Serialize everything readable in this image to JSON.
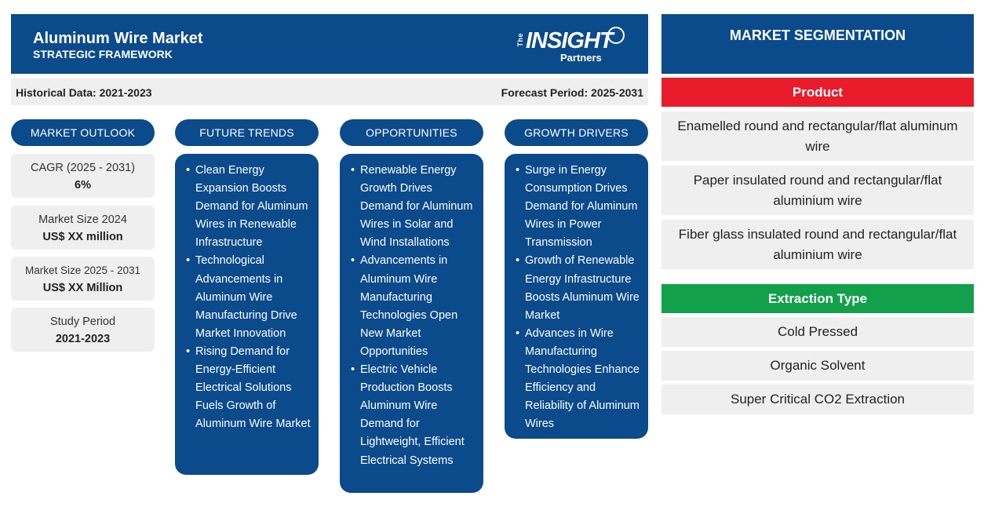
{
  "header": {
    "title": "Aluminum Wire Market",
    "subtitle": "STRATEGIC FRAMEWORK",
    "logo": {
      "the": "The",
      "word": "INSIGHT",
      "partners": "Partners"
    }
  },
  "periods": {
    "historical": "Historical Data: 2021-2023",
    "forecast": "Forecast Period: 2025-2031"
  },
  "columns": {
    "outlook": {
      "title": "MARKET OUTLOOK",
      "cards": [
        {
          "label": "CAGR (2025 - 2031)",
          "value": "6%"
        },
        {
          "label": "Market Size 2024",
          "value": "US$ XX million"
        },
        {
          "label": "Market Size 2025 - 2031",
          "value": "US$ XX Million"
        },
        {
          "label": "Study Period",
          "value": "2021-2023"
        }
      ]
    },
    "trends": {
      "title": "FUTURE TRENDS",
      "items": [
        "Clean Energy Expansion Boosts Demand for Aluminum Wires in Renewable Infrastructure",
        "Technological Advancements in Aluminum Wire Manufacturing Drive Market Innovation",
        "Rising Demand for Energy-Efficient Electrical Solutions Fuels Growth of Aluminum Wire Market"
      ]
    },
    "opportunities": {
      "title": "OPPORTUNITIES",
      "items": [
        "Renewable Energy Growth Drives Demand for Aluminum Wires in Solar and Wind Installations",
        "Advancements in Aluminum Wire Manufacturing Technologies Open New Market Opportunities",
        "Electric Vehicle Production Boosts Aluminum Wire Demand for Lightweight, Efficient Electrical Systems"
      ]
    },
    "drivers": {
      "title": "GROWTH DRIVERS",
      "items": [
        "Surge in Energy Consumption Drives Demand for Aluminum Wires in Power Transmission",
        "Growth of Renewable Energy Infrastructure Boosts Aluminum Wire Market",
        "Advances in Wire Manufacturing Technologies Enhance Efficiency and Reliability of Aluminum Wires"
      ]
    }
  },
  "segmentation": {
    "title": "MARKET SEGMENTATION",
    "product": {
      "label": "Product",
      "items": [
        "Enamelled round and rectangular/flat aluminum wire",
        "Paper insulated round and rectangular/flat aluminium wire",
        "Fiber glass insulated round and rectangular/flat aluminium wire"
      ]
    },
    "extraction": {
      "label": "Extraction Type",
      "items": [
        "Cold Pressed",
        "Organic Solvent",
        "Super Critical CO2 Extraction"
      ]
    }
  },
  "colors": {
    "navy": "#0b4a8b",
    "product_red": "#e81c2a",
    "extraction_green": "#12a04a",
    "card_gray": "#efefef"
  }
}
